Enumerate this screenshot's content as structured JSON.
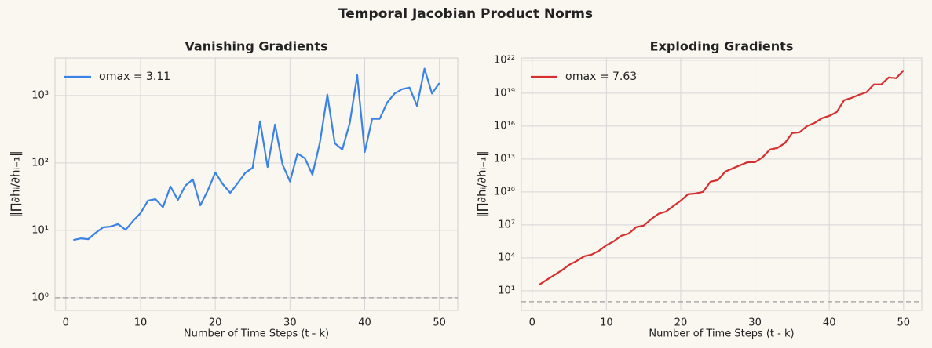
{
  "title": "Temporal Jacobian Product Norms",
  "chart_data": [
    {
      "type": "line",
      "title": "Vanishing Gradients",
      "x_label": "Number of Time Steps (t - k)",
      "y_label": "‖∏∂hᵢ/∂hᵢ₋₁‖",
      "yscale": "log",
      "grid": true,
      "legend": "upper left",
      "hline": 1,
      "x": [
        1,
        2,
        3,
        4,
        5,
        6,
        7,
        8,
        9,
        10,
        11,
        12,
        13,
        14,
        15,
        16,
        17,
        18,
        19,
        20,
        21,
        22,
        23,
        24,
        25,
        26,
        27,
        28,
        29,
        30,
        31,
        32,
        33,
        34,
        35,
        36,
        37,
        38,
        39,
        40,
        41,
        42,
        43,
        44,
        45,
        46,
        47,
        48,
        49,
        50
      ],
      "series": [
        {
          "name": "σmax = 3.11",
          "color": "#3b82e6",
          "values": [
            7.2,
            7.6,
            7.4,
            9.2,
            11.1,
            11.4,
            12.4,
            10.2,
            13.8,
            18,
            27.6,
            29,
            22,
            44.8,
            28.3,
            46,
            57,
            23.5,
            39,
            72,
            48.5,
            36,
            50,
            71,
            85,
            413,
            87,
            370,
            95,
            53,
            138,
            117,
            67,
            200,
            1030,
            195,
            158,
            391,
            2000,
            145,
            450,
            450,
            785,
            1070,
            1240,
            1310,
            702,
            2500,
            1070,
            1530
          ]
        }
      ],
      "xlim": [
        -1.45,
        52.45
      ],
      "xticks": [
        0,
        10,
        20,
        30,
        40,
        50
      ],
      "ylim": [
        0.65,
        3600
      ],
      "yticks": [
        {
          "value": 1,
          "label": "10⁰"
        },
        {
          "value": 10,
          "label": "10¹"
        },
        {
          "value": 100,
          "label": "10²"
        },
        {
          "value": 1000,
          "label": "10³"
        }
      ]
    },
    {
      "type": "line",
      "title": "Exploding Gradients",
      "x_label": "Number of Time Steps (t - k)",
      "y_label": "‖∏∂hᵢ/∂hᵢ₋₁‖",
      "yscale": "log",
      "grid": true,
      "legend": "upper left",
      "hline": 1,
      "x": [
        1,
        2,
        3,
        4,
        5,
        6,
        7,
        8,
        9,
        10,
        11,
        12,
        13,
        14,
        15,
        16,
        17,
        18,
        19,
        20,
        21,
        22,
        23,
        24,
        25,
        26,
        27,
        28,
        29,
        30,
        31,
        32,
        33,
        34,
        35,
        36,
        37,
        38,
        39,
        40,
        41,
        42,
        43,
        44,
        45,
        46,
        47,
        48,
        49,
        50
      ],
      "series": [
        {
          "name": "σmax = 7.63",
          "color": "#d62f2f",
          "values": [
            37,
            100,
            269,
            724,
            2290,
            5130,
            13800,
            19500,
            43600,
            138000,
            320000,
            1000000,
            1600000,
            6200000,
            8500000,
            32000000,
            100000000,
            160000000,
            510000000,
            1600000000,
            6200000000,
            7200000000,
            10000000000,
            85000000000,
            120000000000,
            720000000000,
            1400000000000,
            2700000000000,
            5100000000000,
            5100000000000,
            14000000000000,
            72000000000000,
            100000000000000,
            270000000000000,
            2300000000000000,
            2700000000000000,
            10000000000000000,
            19000000000000000,
            51000000000000000,
            85000000000000000,
            190000000000000000,
            2300000000000000000,
            3700000000000000000,
            7200000000000000000,
            12000000000000000000,
            62000000000000000000,
            62000000000000000000,
            270000000000000000000,
            230000000000000000000,
            1200000000000000000000
          ]
        }
      ],
      "xlim": [
        -1.45,
        52.45
      ],
      "xticks": [
        0,
        10,
        20,
        30,
        40,
        50
      ],
      "ylim": [
        0.16,
        1.6e+22
      ],
      "yticks": [
        {
          "value": 10,
          "label": "10¹"
        },
        {
          "value": 10000,
          "label": "10⁴"
        },
        {
          "value": 10000000,
          "label": "10⁷"
        },
        {
          "value": 10000000000,
          "label": "10¹⁰"
        },
        {
          "value": 10000000000000,
          "label": "10¹³"
        },
        {
          "value": 10000000000000000,
          "label": "10¹⁶"
        },
        {
          "value": 10000000000000000000,
          "label": "10¹⁹"
        },
        {
          "value": 1e+22,
          "label": "10²²"
        }
      ]
    }
  ]
}
